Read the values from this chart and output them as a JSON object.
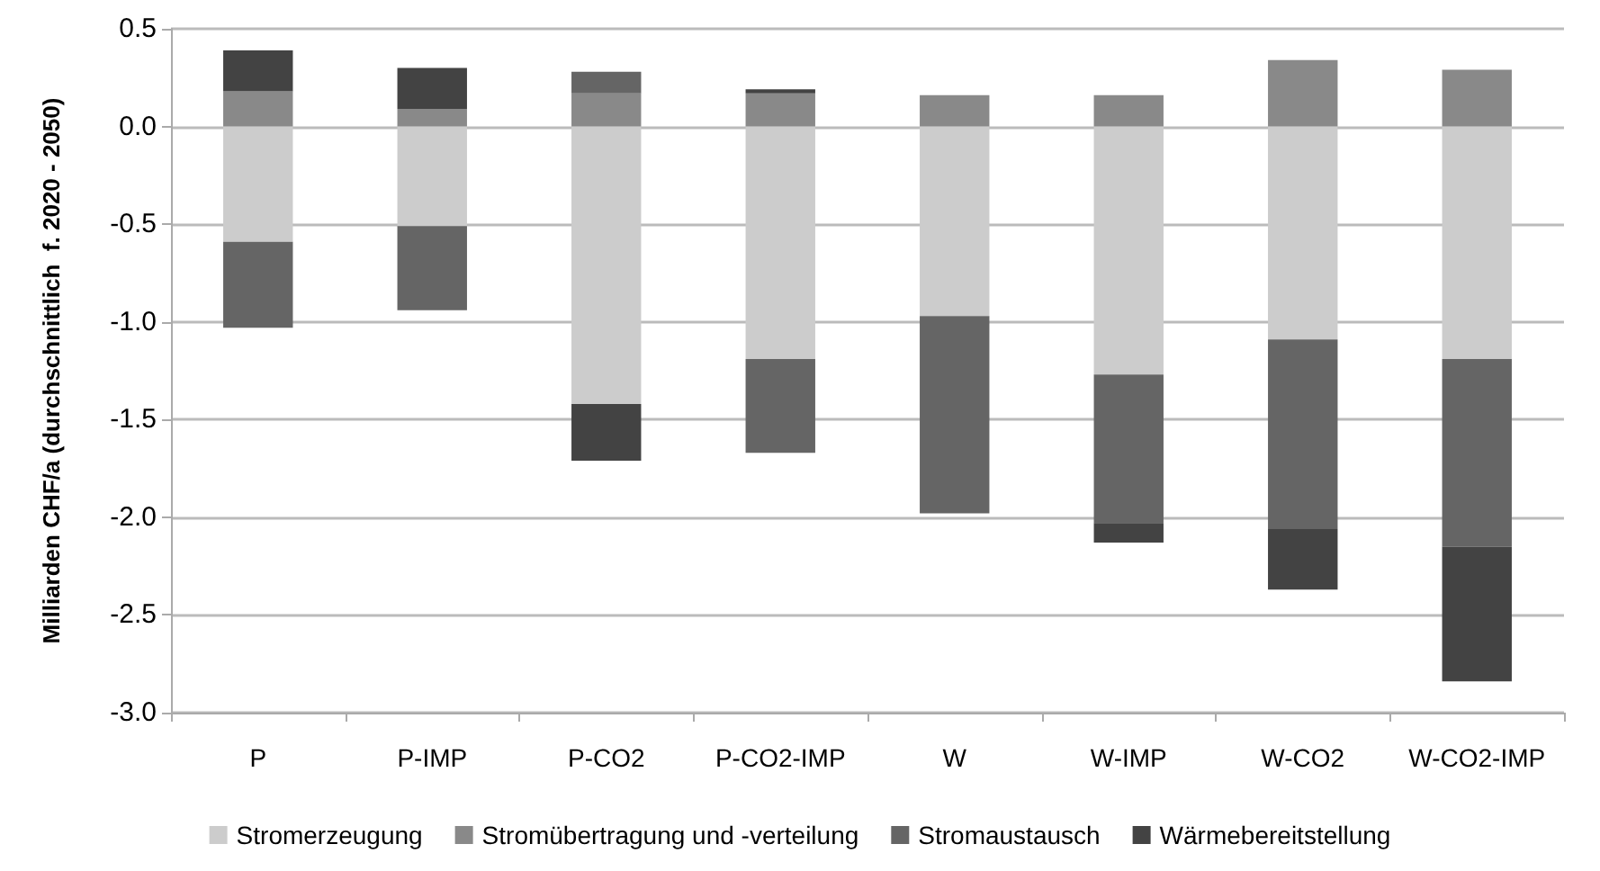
{
  "chart_data": {
    "type": "bar",
    "stacked": true,
    "ylabel": "Milliarden CHF/a (durchschnittlich  f. 2020 - 2050)",
    "categories": [
      "P",
      "P-IMP",
      "P-CO2",
      "P-CO2-IMP",
      "W",
      "W-IMP",
      "W-CO2",
      "W-CO2-IMP"
    ],
    "series": [
      {
        "name": "Stromerzeugung",
        "color": "#cccccc",
        "values": [
          -0.59,
          -0.51,
          -1.42,
          -1.19,
          -0.97,
          -1.27,
          -1.09,
          -1.19
        ]
      },
      {
        "name": "Stromübertragung und -verteilung",
        "color": "#898989",
        "values": [
          0.18,
          0.09,
          0.17,
          0.17,
          0.16,
          0.16,
          0.34,
          0.29
        ]
      },
      {
        "name": "Stromaustausch",
        "color": "#656565",
        "values": [
          -0.44,
          -0.43,
          0.11,
          -0.48,
          -1.01,
          -0.76,
          -0.97,
          -0.96
        ]
      },
      {
        "name": "Wärmebereitstellung",
        "color": "#434343",
        "values": [
          0.21,
          0.21,
          -0.29,
          0.02,
          null,
          -0.1,
          -0.31,
          -0.69
        ]
      }
    ],
    "ylim": [
      -3.0,
      0.5
    ],
    "yticks": [
      {
        "value": -3,
        "label": "-3.0"
      },
      {
        "value": -2.5,
        "label": "-2.5"
      },
      {
        "value": -2,
        "label": "-2.0"
      },
      {
        "value": -1.5,
        "label": "-1.5"
      },
      {
        "value": -1,
        "label": "-1.0"
      },
      {
        "value": -0.5,
        "label": "-0.5"
      },
      {
        "value": 0,
        "label": "0.0"
      },
      {
        "value": 0.5,
        "label": "0.5"
      }
    ],
    "grid": "y",
    "legend": "bottom"
  }
}
